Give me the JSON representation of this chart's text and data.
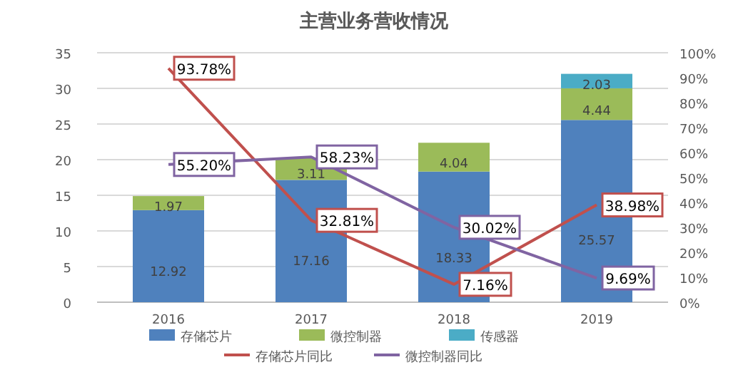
{
  "chart_data": {
    "type": "bar",
    "title": "主营业务营收情况",
    "categories": [
      "2016",
      "2017",
      "2018",
      "2019"
    ],
    "stacked": true,
    "data_labels": true,
    "grid": "y",
    "legend": "bottom",
    "ylim": [
      0,
      35
    ],
    "yticks": [
      0,
      5,
      10,
      15,
      20,
      25,
      30,
      35
    ],
    "y2lim": [
      0,
      100
    ],
    "y2ticks": [
      {
        "value": 0,
        "label": "0%"
      },
      {
        "value": 10,
        "label": "10%"
      },
      {
        "value": 20,
        "label": "20%"
      },
      {
        "value": 30,
        "label": "30%"
      },
      {
        "value": 40,
        "label": "40%"
      },
      {
        "value": 50,
        "label": "50%"
      },
      {
        "value": 60,
        "label": "60%"
      },
      {
        "value": 70,
        "label": "70%"
      },
      {
        "value": 80,
        "label": "80%"
      },
      {
        "value": 90,
        "label": "90%"
      },
      {
        "value": 100,
        "label": "100%"
      }
    ],
    "series": [
      {
        "name": "存储芯片",
        "color": "#4f81bd",
        "values": [
          12.92,
          17.16,
          18.33,
          25.57
        ]
      },
      {
        "name": "微控制器",
        "color": "#9bbb59",
        "values": [
          1.97,
          3.11,
          4.04,
          4.44
        ]
      },
      {
        "name": "传感器",
        "color": "#4bacc6",
        "values": [
          null,
          null,
          null,
          2.03
        ]
      },
      {
        "name": "存储芯片同比",
        "type": "line",
        "axis": "y2",
        "color": "#c0504d",
        "values": [
          93.78,
          32.81,
          7.16,
          38.98
        ],
        "value_labels": [
          "93.78%",
          "32.81%",
          "7.16%",
          "38.98%"
        ]
      },
      {
        "name": "微控制器同比",
        "type": "line",
        "axis": "y2",
        "color": "#8064a2",
        "values": [
          55.2,
          58.23,
          30.02,
          9.69
        ],
        "value_labels": [
          "55.20%",
          "58.23%",
          "30.02%",
          "9.69%"
        ]
      }
    ]
  }
}
